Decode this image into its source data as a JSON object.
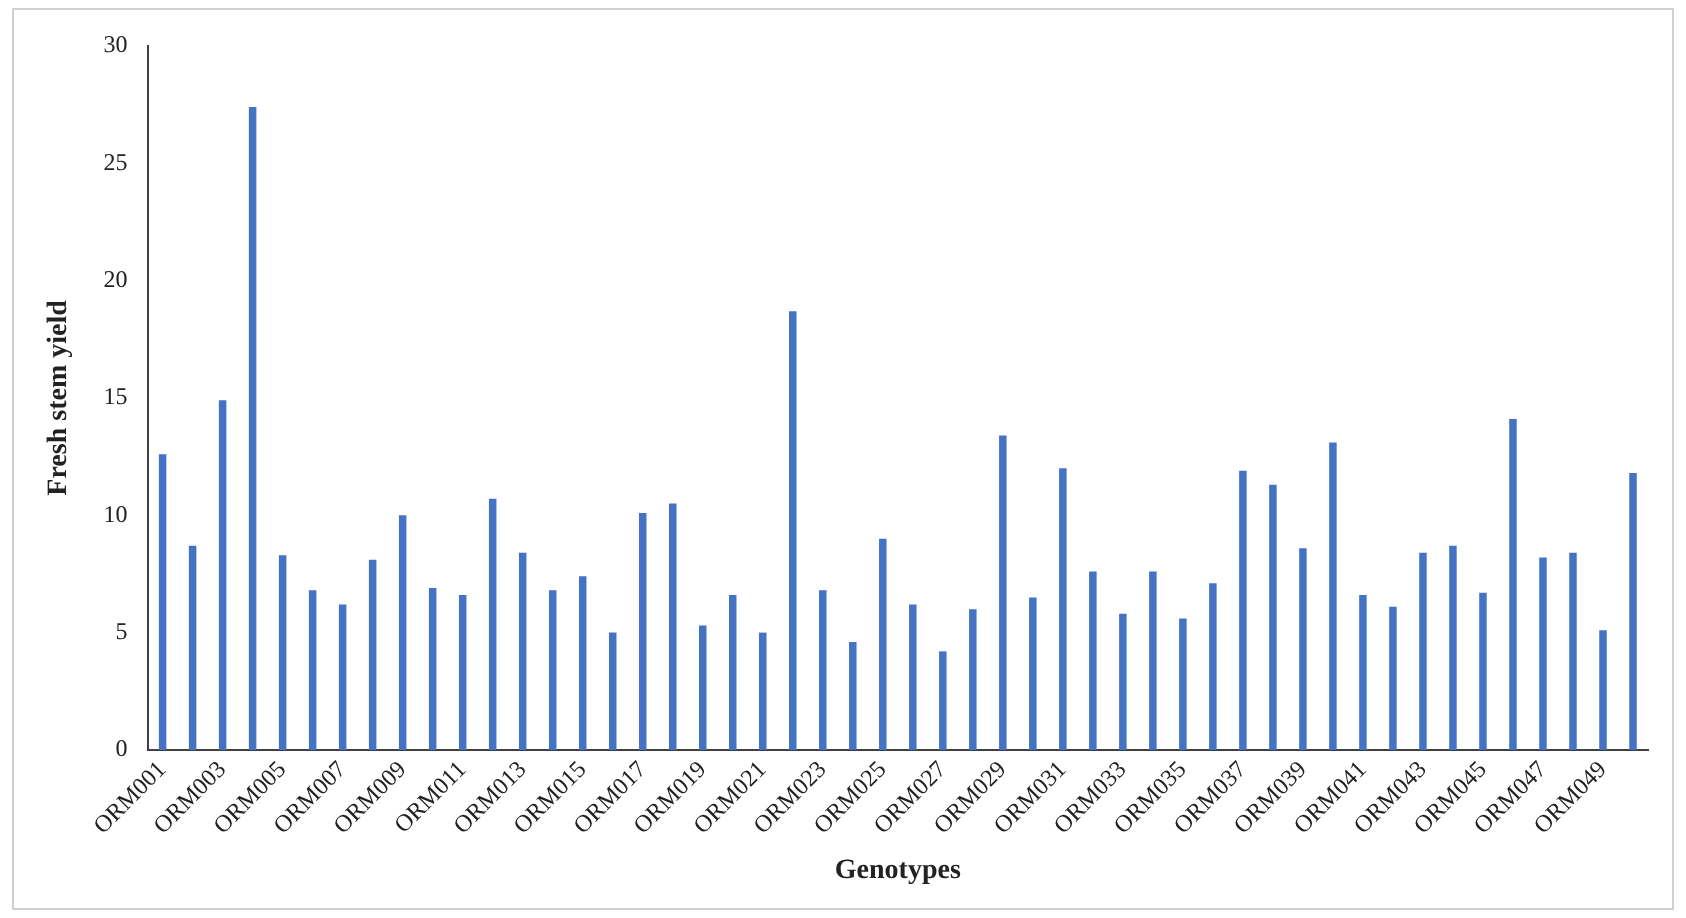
{
  "chart_data": {
    "type": "bar",
    "xlabel": "Genotypes",
    "ylabel": "Fresh stem yield",
    "categories": [
      "ORM001",
      null,
      "ORM003",
      null,
      "ORM005",
      null,
      "ORM007",
      null,
      "ORM009",
      null,
      "ORM011",
      null,
      "ORM013",
      null,
      "ORM015",
      null,
      "ORM017",
      null,
      "ORM019",
      null,
      "ORM021",
      null,
      "ORM023",
      null,
      "ORM025",
      null,
      "ORM027",
      null,
      "ORM029",
      null,
      "ORM031",
      null,
      "ORM033",
      null,
      "ORM035",
      null,
      "ORM037",
      null,
      "ORM039",
      null,
      "ORM041",
      null,
      "ORM043",
      null,
      "ORM045",
      null,
      "ORM047",
      null,
      "ORM049",
      null
    ],
    "values": [
      12.6,
      8.7,
      14.9,
      27.4,
      8.3,
      6.8,
      6.2,
      8.1,
      10.0,
      6.9,
      6.6,
      10.7,
      8.4,
      6.8,
      7.4,
      5.0,
      10.1,
      10.5,
      5.3,
      6.6,
      5.0,
      18.7,
      6.8,
      4.6,
      9.0,
      6.2,
      4.2,
      6.0,
      13.4,
      6.5,
      12.0,
      7.6,
      5.8,
      7.6,
      5.6,
      7.1,
      11.9,
      11.3,
      8.6,
      13.1,
      6.6,
      6.1,
      8.4,
      8.7,
      6.7,
      14.1,
      8.2,
      8.4,
      5.1,
      11.8
    ],
    "color": "#4472c4",
    "ylim": [
      0,
      30
    ],
    "yticks": [
      0,
      5,
      10,
      15,
      20,
      25,
      30
    ],
    "grid": false,
    "legend": false
  }
}
